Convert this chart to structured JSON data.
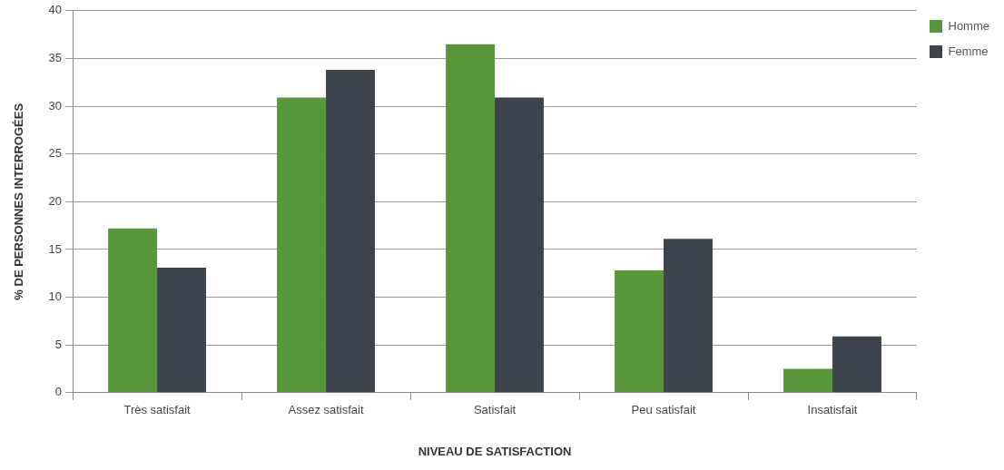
{
  "chart_data": {
    "type": "bar",
    "xlabel": "NIVEAU DE SATISFACTION",
    "ylabel": "% DE PERSONNES INTERROGÉES",
    "categories": [
      "Très satisfait",
      "Assez satisfait",
      "Satisfait",
      "Peu satisfait",
      "Insatisfait"
    ],
    "series": [
      {
        "name": "Homme",
        "color": "#58963a",
        "values": [
          17.2,
          30.9,
          36.5,
          12.8,
          2.5
        ]
      },
      {
        "name": "Femme",
        "color": "#3d444d",
        "values": [
          13.1,
          33.8,
          30.9,
          16.1,
          5.9
        ]
      }
    ],
    "ylim": [
      0,
      40
    ],
    "yticks": [
      0,
      5,
      10,
      15,
      20,
      25,
      30,
      35,
      40
    ],
    "grid": "y",
    "legend": "top right"
  }
}
